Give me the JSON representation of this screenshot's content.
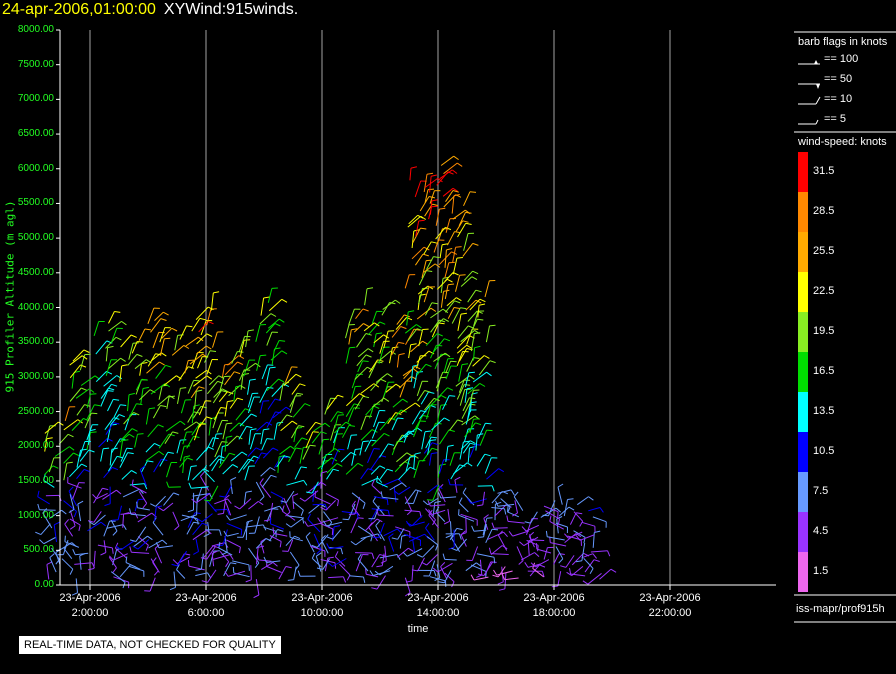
{
  "header": {
    "timestamp": "24-apr-2006,01:00:00",
    "product": "XYWind:915winds."
  },
  "qc_notice": "REAL-TIME DATA, NOT CHECKED FOR QUALITY",
  "legend": {
    "barb_title": "barb flags in knots",
    "barb_items": [
      "== 100",
      "== 50",
      "== 10",
      "== 5"
    ],
    "speed_title": "wind-speed: knots",
    "source": "iss-mapr/prof915h"
  },
  "colors": {
    "background": "#000000",
    "axis": "#ffffff",
    "gridline": "#cccccc",
    "yaxis_text": "#22ff22",
    "title_timestamp": "#ffff00"
  },
  "chart_data": {
    "type": "scatter",
    "title": "XYWind:915winds.",
    "xlabel": "time",
    "ylabel": "915 Profiler Altitude (m agl)",
    "ylim": [
      0,
      8000
    ],
    "yticks": [
      "0.00",
      "500.00",
      "1000.00",
      "1500.00",
      "2000.00",
      "2500.00",
      "3000.00",
      "3500.00",
      "4000.00",
      "4500.00",
      "5000.00",
      "5500.00",
      "6000.00",
      "6500.00",
      "7000.00",
      "7500.00",
      "8000.00"
    ],
    "xlim_hours": [
      0.5,
      25
    ],
    "xticks": [
      {
        "hour": 2,
        "date": "23-Apr-2006",
        "time": "2:00:00"
      },
      {
        "hour": 6,
        "date": "23-Apr-2006",
        "time": "6:00:00"
      },
      {
        "hour": 10,
        "date": "23-Apr-2006",
        "time": "10:00:00"
      },
      {
        "hour": 14,
        "date": "23-Apr-2006",
        "time": "14:00:00"
      },
      {
        "hour": 18,
        "date": "23-Apr-2006",
        "time": "18:00:00"
      },
      {
        "hour": 22,
        "date": "23-Apr-2006",
        "time": "22:00:00"
      }
    ],
    "vertical_grid": true,
    "colorbar": {
      "labels": [
        "31.5",
        "28.5",
        "25.5",
        "22.5",
        "19.5",
        "16.5",
        "13.5",
        "10.5",
        "7.5",
        "4.5",
        "1.5"
      ],
      "colors": [
        "#ff0000",
        "#ff8800",
        "#ffaa00",
        "#ffff00",
        "#88ee22",
        "#00dd00",
        "#00ffff",
        "#0000ff",
        "#6699ff",
        "#9933ff",
        "#ee66ee"
      ]
    },
    "wind_profiles": [
      {
        "hour": 0.8,
        "top": 2400,
        "max_speed": 24
      },
      {
        "hour": 1.6,
        "top": 3300,
        "max_speed": 22
      },
      {
        "hour": 2.5,
        "top": 3800,
        "max_speed": 20
      },
      {
        "hour": 3.4,
        "top": 3600,
        "max_speed": 24
      },
      {
        "hour": 4.3,
        "top": 3900,
        "max_speed": 26
      },
      {
        "hour": 5.2,
        "top": 3700,
        "max_speed": 28
      },
      {
        "hour": 5.9,
        "top": 4000,
        "max_speed": 30
      },
      {
        "hour": 6.5,
        "top": 3200,
        "max_speed": 26
      },
      {
        "hour": 7.2,
        "top": 3500,
        "max_speed": 20
      },
      {
        "hour": 8.0,
        "top": 4100,
        "max_speed": 20
      },
      {
        "hour": 8.8,
        "top": 3000,
        "max_speed": 24
      },
      {
        "hour": 9.6,
        "top": 2300,
        "max_speed": 22
      },
      {
        "hour": 10.3,
        "top": 2600,
        "max_speed": 20
      },
      {
        "hour": 11.0,
        "top": 3900,
        "max_speed": 26
      },
      {
        "hour": 11.8,
        "top": 4100,
        "max_speed": 24
      },
      {
        "hour": 12.5,
        "top": 3800,
        "max_speed": 28
      },
      {
        "hour": 13.2,
        "top": 5900,
        "max_speed": 31
      },
      {
        "hour": 13.9,
        "top": 6100,
        "max_speed": 32
      },
      {
        "hour": 14.6,
        "top": 5600,
        "max_speed": 30
      },
      {
        "hour": 15.3,
        "top": 4200,
        "max_speed": 24
      },
      {
        "hour": 16.0,
        "top": 1400,
        "max_speed": 10
      },
      {
        "hour": 16.7,
        "top": 1300,
        "max_speed": 8
      },
      {
        "hour": 17.4,
        "top": 1200,
        "max_speed": 9
      },
      {
        "hour": 18.0,
        "top": 1300,
        "max_speed": 10
      },
      {
        "hour": 18.7,
        "top": 1200,
        "max_speed": 12
      },
      {
        "hour": 19.3,
        "top": 1100,
        "max_speed": 14
      }
    ]
  }
}
